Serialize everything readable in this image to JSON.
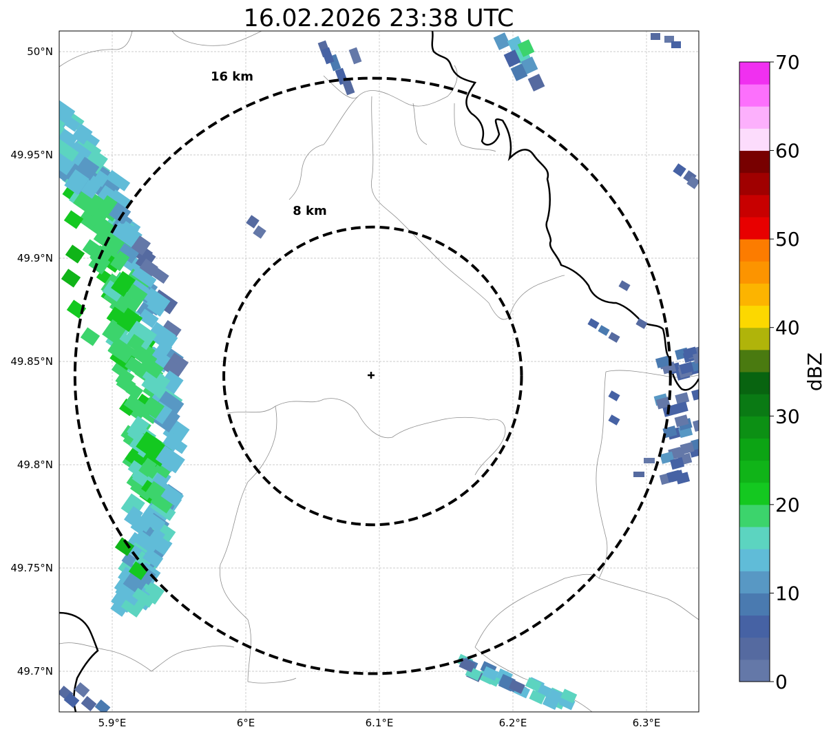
{
  "title": "16.02.2026 23:38 UTC",
  "radar_site": {
    "lon": 6.095,
    "lat": 49.843
  },
  "map_extent": {
    "lon": [
      5.86,
      6.34
    ],
    "lat": [
      49.68,
      50.01
    ]
  },
  "lon_ticks": [
    {
      "value": 5.9,
      "label": "5.9°E"
    },
    {
      "value": 6.0,
      "label": "6°E"
    },
    {
      "value": 6.1,
      "label": "6.1°E"
    },
    {
      "value": 6.2,
      "label": "6.2°E"
    },
    {
      "value": 6.3,
      "label": "6.3°E"
    }
  ],
  "lat_ticks": [
    {
      "value": 50.0,
      "label": "50°N"
    },
    {
      "value": 49.95,
      "label": "49.95°N"
    },
    {
      "value": 49.9,
      "label": "49.9°N"
    },
    {
      "value": 49.85,
      "label": "49.85°N"
    },
    {
      "value": 49.8,
      "label": "49.8°N"
    },
    {
      "value": 49.75,
      "label": "49.75°N"
    },
    {
      "value": 49.7,
      "label": "49.7°N"
    }
  ],
  "range_rings": [
    {
      "km": 8,
      "label": "8 km"
    },
    {
      "km": 16,
      "label": "16 km"
    }
  ],
  "colorbar": {
    "label": "dBZ",
    "min": 0,
    "max": 70,
    "step": 2.5,
    "tick_labels": [
      "0",
      "10",
      "20",
      "30",
      "40",
      "50",
      "60",
      "70"
    ],
    "colors": [
      "#6478a8",
      "#556aa0",
      "#4662a4",
      "#4a7ab0",
      "#5898c4",
      "#60bcd8",
      "#5cd4c0",
      "#3cd46c",
      "#14c820",
      "#10b418",
      "#0ca414",
      "#0c9014",
      "#0a7a14",
      "#086410",
      "#4a7a10",
      "#b0b40a",
      "#fcd800",
      "#fcb400",
      "#fc9400",
      "#fc7c00",
      "#e80000",
      "#c80000",
      "#a00000",
      "#780000",
      "#fcdcfc",
      "#fcb0fc",
      "#fc70fc",
      "#f030f0"
    ]
  }
}
